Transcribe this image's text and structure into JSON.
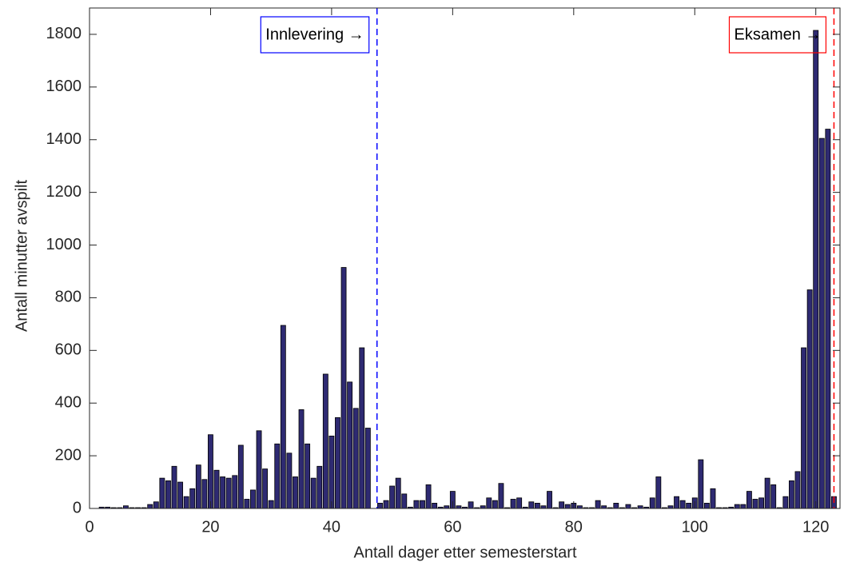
{
  "chart_data": {
    "type": "bar",
    "xlabel": "Antall dager etter semesterstart",
    "ylabel": "Antall minutter avspilt",
    "x": [
      1,
      2,
      3,
      4,
      5,
      6,
      7,
      8,
      9,
      10,
      11,
      12,
      13,
      14,
      15,
      16,
      17,
      18,
      19,
      20,
      21,
      22,
      23,
      24,
      25,
      26,
      27,
      28,
      29,
      30,
      31,
      32,
      33,
      34,
      35,
      36,
      37,
      38,
      39,
      40,
      41,
      42,
      43,
      44,
      45,
      46,
      47,
      48,
      49,
      50,
      51,
      52,
      53,
      54,
      55,
      56,
      57,
      58,
      59,
      60,
      61,
      62,
      63,
      64,
      65,
      66,
      67,
      68,
      69,
      70,
      71,
      72,
      73,
      74,
      75,
      76,
      77,
      78,
      79,
      80,
      81,
      82,
      83,
      84,
      85,
      86,
      87,
      88,
      89,
      90,
      91,
      92,
      93,
      94,
      95,
      96,
      97,
      98,
      99,
      100,
      101,
      102,
      103,
      104,
      105,
      106,
      107,
      108,
      109,
      110,
      111,
      112,
      113,
      114,
      115,
      116,
      117,
      118,
      119,
      120,
      121,
      122,
      123
    ],
    "values": [
      0,
      5,
      5,
      3,
      3,
      10,
      3,
      3,
      3,
      15,
      25,
      115,
      105,
      160,
      100,
      45,
      75,
      165,
      110,
      280,
      145,
      120,
      115,
      125,
      240,
      35,
      70,
      295,
      150,
      30,
      245,
      695,
      210,
      120,
      375,
      245,
      115,
      160,
      510,
      275,
      345,
      915,
      480,
      380,
      610,
      305,
      0,
      20,
      30,
      85,
      115,
      55,
      5,
      30,
      30,
      90,
      20,
      5,
      10,
      65,
      10,
      5,
      25,
      3,
      10,
      40,
      30,
      95,
      3,
      35,
      40,
      5,
      25,
      20,
      10,
      65,
      3,
      25,
      15,
      20,
      10,
      3,
      3,
      30,
      10,
      3,
      20,
      3,
      15,
      3,
      10,
      5,
      40,
      120,
      3,
      10,
      45,
      30,
      20,
      40,
      185,
      20,
      75,
      3,
      3,
      5,
      15,
      15,
      65,
      35,
      40,
      115,
      90,
      3,
      45,
      105,
      140,
      610,
      830,
      1815,
      1405,
      1440,
      45
    ],
    "color": "#2e2a72",
    "xlim": [
      0,
      124
    ],
    "xticks": [
      0,
      20,
      40,
      60,
      80,
      100,
      120
    ],
    "ylim": [
      0,
      1900
    ],
    "yticks": [
      0,
      200,
      400,
      600,
      800,
      1000,
      1200,
      1400,
      1600,
      1800
    ],
    "annotations": [
      {
        "x": 47.5,
        "label": "Innlevering →",
        "color": "#0000ff"
      },
      {
        "x": 123,
        "label": "Eksamen →",
        "color": "#ff0000"
      }
    ]
  }
}
